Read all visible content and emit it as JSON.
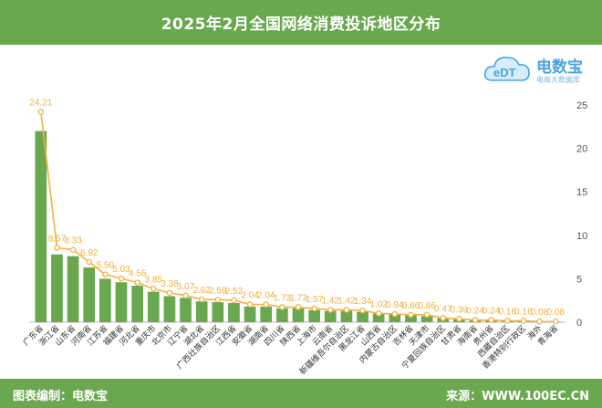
{
  "header": {
    "title": "2025年2月全国网络消费投诉地区分布"
  },
  "footer": {
    "left_text": "图表编制：电数宝",
    "right_text": "来源：WWW.100EC.CN"
  },
  "logo": {
    "brand": "电数宝",
    "subtitle": "电商大数据库"
  },
  "colors": {
    "header_bg": "#6aa84f",
    "bar": "#6aa84f",
    "line": "#f5b041",
    "axis_text": "#555555"
  },
  "chart_data": {
    "type": "bar",
    "title": "2025年2月全国网络消费投诉地区分布",
    "categories": [
      "广东省",
      "浙江省",
      "山东省",
      "河南省",
      "江苏省",
      "福建省",
      "河北省",
      "重庆市",
      "北京市",
      "辽宁省",
      "湖北省",
      "广西壮族自治区",
      "江西省",
      "安徽省",
      "湖南省",
      "四川省",
      "陕西省",
      "上海市",
      "云南省",
      "新疆维吾尔自治区",
      "黑龙江省",
      "山西省",
      "内蒙古自治区",
      "吉林省",
      "天津市",
      "宁夏回族自治区",
      "甘肃省",
      "海南省",
      "贵州省",
      "西藏自治区",
      "香港特别行政区",
      "海外",
      "青海省"
    ],
    "series": [
      {
        "type": "bar",
        "values": [
          22.0,
          7.8,
          7.6,
          6.3,
          5.0,
          4.6,
          4.2,
          3.5,
          3.0,
          2.8,
          2.4,
          2.3,
          2.2,
          1.8,
          1.8,
          1.6,
          1.6,
          1.4,
          1.3,
          1.3,
          1.2,
          1.0,
          0.9,
          0.8,
          0.7,
          0.45,
          0.35,
          0.24,
          0.22,
          0.15,
          0.13,
          0.07,
          0.06
        ]
      },
      {
        "type": "line",
        "values": [
          24.21,
          8.57,
          8.33,
          6.92,
          5.5,
          5.03,
          4.56,
          3.85,
          3.38,
          3.07,
          2.62,
          2.59,
          2.52,
          2.04,
          2.04,
          1.73,
          1.73,
          1.57,
          1.42,
          1.42,
          1.34,
          1.02,
          0.94,
          0.86,
          0.86,
          0.47,
          0.39,
          0.24,
          0.24,
          0.16,
          0.16,
          0.08,
          0.08
        ]
      }
    ],
    "data_labels": [
      "24.21",
      "8.57",
      "8.33",
      "6.92",
      "5.50",
      "5.03",
      "4.56",
      "3.85",
      "3.38",
      "3.07",
      "2.62",
      "2.59",
      "2.52",
      "2.04",
      "2.04",
      "1.73",
      "1.73",
      "1.57",
      "1.42",
      "1.42",
      "1.34",
      "1.02",
      "0.94",
      "0.86",
      "0.86",
      "0.47",
      "0.39",
      "0.24",
      "0.24",
      "0.16",
      "0.16",
      "0.08",
      "0.08"
    ],
    "yticks": [
      "0",
      "5",
      "10",
      "15",
      "20",
      "25"
    ],
    "ylim": [
      0,
      25
    ],
    "y_axis_position": "right",
    "grid": false,
    "legend": "none"
  }
}
